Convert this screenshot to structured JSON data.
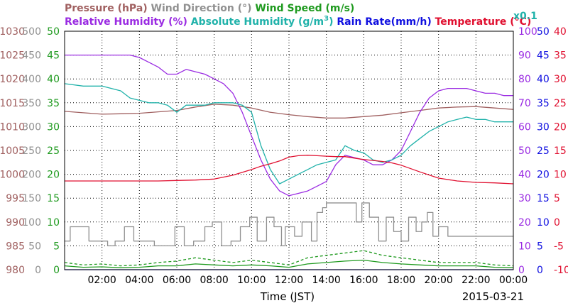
{
  "chart_data": {
    "type": "line",
    "date": "2015-03-21",
    "xlabel": "Time (JST)",
    "x_ticks": [
      "02:00",
      "04:00",
      "06:00",
      "08:00",
      "10:00",
      "12:00",
      "14:00",
      "16:00",
      "18:00",
      "20:00",
      "22:00",
      "00:00"
    ],
    "x_range_hours": [
      0,
      24
    ],
    "grid": true,
    "colors": {
      "pressure": "#a06060",
      "wind_direction": "#909090",
      "wind_speed": "#1f9a1f",
      "relative_humidity": "#9a2be2",
      "absolute_humidity": "#20b2aa",
      "rain_rate": "#1010e0",
      "temperature": "#e01030"
    },
    "titles": {
      "pressure": "Pressure (hPa)",
      "wind_direction": "Wind Direction (°)",
      "wind_speed": "Wind Speed (m/s)",
      "relative_humidity": "Relative Humidity (%)",
      "absolute_humidity_prefix": "Absolute Humidity (g/m",
      "absolute_humidity_sup": "3",
      "absolute_humidity_suffix": ")",
      "rain_rate": "Rain Rate(mm/h)",
      "temperature": "Temperature",
      "temperature_unit": "(°C)",
      "scale_note": "x0.1"
    },
    "axes": {
      "pressure": {
        "range": [
          980,
          1030
        ],
        "ticks": [
          "980",
          "985",
          "990",
          "995",
          "1000",
          "1005",
          "1010",
          "1015",
          "1020",
          "1025",
          "1030"
        ]
      },
      "wind_direction": {
        "range": [
          0,
          500
        ],
        "ticks": [
          "0",
          "50",
          "100",
          "150",
          "200",
          "250",
          "300",
          "350",
          "400",
          "450",
          "500"
        ]
      },
      "wind_speed": {
        "range": [
          0,
          50
        ],
        "ticks": [
          "0",
          "5",
          "10",
          "15",
          "20",
          "25",
          "30",
          "35",
          "40",
          "45",
          "50"
        ]
      },
      "relative_humidity": {
        "range": [
          0,
          100
        ],
        "ticks": [
          "0",
          "10",
          "20",
          "30",
          "40",
          "50",
          "60",
          "70",
          "80",
          "90",
          "100"
        ]
      },
      "rain_rate": {
        "range": [
          0,
          50
        ],
        "ticks": [
          "0",
          "5",
          "10",
          "15",
          "20",
          "25",
          "30",
          "35",
          "40",
          "45",
          "50"
        ]
      },
      "temperature": {
        "range": [
          -10,
          40
        ],
        "ticks": [
          "-10",
          "-5",
          "0",
          "5",
          "10",
          "15",
          "20",
          "25",
          "30",
          "35",
          "40"
        ]
      }
    },
    "series": [
      {
        "name": "Pressure (hPa)",
        "key": "pressure",
        "axis": "pressure",
        "x": [
          0,
          1,
          2,
          3,
          4,
          5,
          6,
          7,
          8,
          9,
          10,
          11,
          12,
          13,
          14,
          15,
          16,
          17,
          18,
          19,
          20,
          21,
          22,
          23,
          24
        ],
        "values": [
          1013.2,
          1012.9,
          1012.6,
          1012.7,
          1012.8,
          1013.1,
          1013.4,
          1014.1,
          1014.7,
          1014.5,
          1013.9,
          1013.0,
          1012.5,
          1012.1,
          1011.8,
          1011.8,
          1012.1,
          1012.4,
          1012.9,
          1013.4,
          1013.9,
          1014.1,
          1014.2,
          1013.9,
          1013.6
        ]
      },
      {
        "name": "Wind Direction (°)",
        "key": "wind_direction",
        "axis": "wind_direction",
        "style": "step",
        "x": [
          0,
          0.3,
          0.6,
          1.3,
          1.6,
          2.3,
          2.7,
          3.2,
          3.7,
          4.3,
          4.8,
          5.4,
          5.9,
          6.4,
          6.9,
          7.5,
          7.9,
          8.4,
          8.9,
          9.4,
          9.9,
          10.3,
          10.8,
          11.2,
          11.6,
          11.8,
          12.3,
          12.7,
          13.2,
          13.5,
          13.8,
          14.0,
          14.5,
          15.0,
          15.3,
          15.6,
          15.9,
          16.3,
          16.8,
          17.2,
          17.6,
          18.0,
          18.4,
          18.8,
          19.1,
          19.4,
          19.7,
          20.0,
          20.5,
          21.0,
          21.5,
          22.0,
          22.5,
          23.0,
          24.0
        ],
        "values": [
          60,
          90,
          90,
          60,
          60,
          50,
          60,
          90,
          60,
          60,
          50,
          50,
          90,
          50,
          60,
          90,
          100,
          50,
          60,
          90,
          110,
          60,
          110,
          90,
          50,
          90,
          70,
          100,
          60,
          120,
          130,
          140,
          140,
          140,
          140,
          100,
          140,
          110,
          60,
          110,
          80,
          60,
          110,
          80,
          100,
          120,
          70,
          90,
          70,
          70,
          70,
          70,
          70,
          70,
          70
        ]
      },
      {
        "name": "Wind Speed (m/s)",
        "key": "wind_speed",
        "axis": "wind_speed",
        "style": "dashed",
        "x": [
          0,
          1,
          2,
          3,
          4,
          5,
          6,
          7,
          8,
          9,
          10,
          11,
          12,
          13,
          14,
          15,
          16,
          17,
          18,
          19,
          20,
          21,
          22,
          23,
          24
        ],
        "values": [
          1.5,
          1.0,
          1.2,
          0.8,
          1.0,
          1.5,
          1.8,
          2.5,
          2.0,
          1.5,
          2.0,
          1.5,
          1.0,
          2.5,
          3.0,
          3.5,
          4.0,
          3.0,
          2.5,
          2.0,
          1.5,
          1.5,
          1.5,
          1.0,
          0.8
        ]
      },
      {
        "name": "Wind Speed (m/s)",
        "key": "wind_speed",
        "axis": "wind_speed",
        "x": [
          0,
          1,
          2,
          3,
          4,
          5,
          6,
          7,
          8,
          9,
          10,
          11,
          12,
          13,
          14,
          15,
          16,
          17,
          18,
          19,
          20,
          21,
          22,
          23,
          24
        ],
        "values": [
          0.8,
          0.5,
          0.6,
          0.4,
          0.5,
          0.8,
          0.8,
          1.2,
          1.0,
          0.8,
          1.0,
          0.8,
          0.5,
          1.2,
          1.5,
          1.8,
          2.0,
          1.5,
          1.2,
          1.0,
          0.8,
          0.8,
          0.8,
          0.5,
          0.4
        ]
      },
      {
        "name": "Relative Humidity (%)",
        "key": "relative_humidity",
        "axis": "relative_humidity",
        "x": [
          0,
          1,
          2,
          3,
          3.5,
          4,
          4.5,
          5,
          5.5,
          6,
          6.5,
          7,
          7.5,
          8,
          8.5,
          9,
          9.5,
          10,
          10.5,
          11,
          11.5,
          12,
          12.5,
          13,
          13.5,
          14,
          14.5,
          15,
          15.5,
          16,
          16.5,
          17,
          17.5,
          18,
          18.5,
          19,
          19.5,
          20,
          20.5,
          21,
          21.5,
          22,
          22.5,
          23,
          23.5,
          24
        ],
        "values": [
          90,
          90,
          90,
          90,
          90,
          89,
          87,
          85,
          82,
          82,
          84,
          83,
          82,
          80,
          78,
          74,
          66,
          56,
          46,
          38,
          33,
          31,
          32,
          33,
          35,
          37,
          44,
          48,
          47,
          46,
          44,
          44,
          46,
          50,
          58,
          66,
          72,
          75,
          76,
          76,
          76,
          75,
          74,
          74,
          73,
          73
        ]
      },
      {
        "name": "Absolute Humidity (g/m3)",
        "key": "absolute_humidity",
        "axis": "relative_humidity",
        "x": [
          0,
          1,
          2,
          3,
          3.5,
          4,
          4.5,
          5,
          5.5,
          6,
          6.5,
          7,
          7.5,
          8,
          8.5,
          9,
          9.5,
          10,
          10.5,
          11,
          11.5,
          12,
          12.5,
          13,
          13.5,
          14,
          14.5,
          15,
          15.5,
          16,
          16.5,
          17,
          17.5,
          18,
          18.5,
          19,
          19.5,
          20,
          20.5,
          21,
          21.5,
          22,
          22.5,
          23,
          23.5,
          24
        ],
        "values": [
          78,
          77,
          77,
          75,
          72,
          71,
          70,
          70,
          69,
          66,
          69,
          69,
          69,
          70,
          70,
          70,
          69,
          66,
          52,
          42,
          36,
          38,
          40,
          42,
          44,
          45,
          46,
          52,
          50,
          49,
          46,
          45,
          46,
          48,
          52,
          55,
          58,
          60,
          62,
          63,
          64,
          63,
          63,
          62,
          62,
          62
        ]
      },
      {
        "name": "Temperature (°C)",
        "key": "temperature",
        "axis": "temperature",
        "x": [
          0,
          1,
          2,
          3,
          4,
          5,
          6,
          7,
          8,
          9,
          10,
          10.5,
          11,
          11.5,
          12,
          12.5,
          13,
          13.5,
          14,
          14.5,
          15,
          15.5,
          16,
          16.5,
          17,
          17.5,
          18,
          19,
          20,
          21,
          22,
          23,
          24
        ],
        "values": [
          8.6,
          8.6,
          8.6,
          8.6,
          8.6,
          8.6,
          8.7,
          8.8,
          9.0,
          9.8,
          11.0,
          11.7,
          12.2,
          12.8,
          13.6,
          13.9,
          14.0,
          13.9,
          13.8,
          13.7,
          13.7,
          13.4,
          13.1,
          12.9,
          12.7,
          12.4,
          11.9,
          10.5,
          9.2,
          8.6,
          8.3,
          8.2,
          8.0
        ]
      },
      {
        "name": "Rain Rate(mm/h)",
        "key": "rain_rate",
        "axis": "rain_rate",
        "x": [
          0,
          24
        ],
        "values": [
          0,
          0
        ]
      }
    ]
  }
}
